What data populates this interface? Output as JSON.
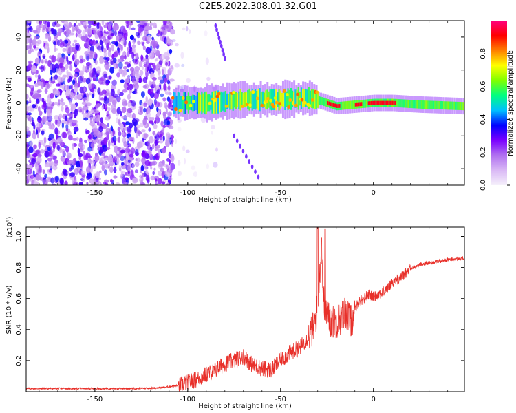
{
  "title": "C2E5.2022.308.01.32.G01",
  "chart_data": [
    {
      "type": "heatmap",
      "title": "C2E5.2022.308.01.32.G01",
      "xlabel": "Height of straight line (km)",
      "ylabel": "Frequency (Hz)",
      "xlim": [
        -187,
        49
      ],
      "ylim": [
        -50,
        50
      ],
      "x_ticks": [
        "-150",
        "-100",
        "-50",
        "0"
      ],
      "y_ticks": [
        "40",
        "20",
        "0",
        "-20",
        "-40"
      ],
      "x_tick_values": [
        -150,
        -100,
        -50,
        0
      ],
      "y_tick_values": [
        40,
        20,
        0,
        -20,
        -40
      ],
      "colorbar": {
        "label": "Normalized spectral amplitude",
        "range": [
          0,
          1
        ],
        "ticks": [
          "0.0",
          "0.2",
          "0.4",
          "0.6",
          "0.8"
        ],
        "tick_values": [
          0.0,
          0.2,
          0.4,
          0.6,
          0.8
        ],
        "colormap": [
          "#f5f0fb",
          "#d9b8f5",
          "#b070f0",
          "#7a00ff",
          "#0000ff",
          "#00c0ff",
          "#00ff80",
          "#80ff00",
          "#ffff00",
          "#ff8000",
          "#ff0000",
          "#ff0080"
        ]
      },
      "features": [
        {
          "name": "noise-region",
          "x_range": [
            -187,
            -108
          ],
          "level": 0.3
        },
        {
          "name": "signal-band",
          "points": [
            [
              -110,
              0
            ],
            [
              -90,
              0
            ],
            [
              -70,
              2
            ],
            [
              -50,
              2
            ],
            [
              -35,
              3
            ],
            [
              -28,
              1
            ],
            [
              -20,
              -2
            ],
            [
              -10,
              -1
            ],
            [
              0,
              0
            ],
            [
              10,
              0
            ],
            [
              25,
              -1
            ],
            [
              49,
              -2
            ]
          ]
        },
        {
          "name": "streak-upper",
          "points": [
            [
              -85,
              47
            ],
            [
              -80,
              27
            ]
          ]
        },
        {
          "name": "streak-lower",
          "points": [
            [
              -75,
              -20
            ],
            [
              -62,
              -45
            ]
          ]
        }
      ]
    },
    {
      "type": "line",
      "xlabel": "Height of straight line (km)",
      "ylabel": "SNR (10 * v/v)",
      "y_scale_label": "(x10",
      "y_scale_exp": "4",
      "y_scale_close": ")",
      "xlim": [
        -187,
        49
      ],
      "ylim": [
        0,
        1.06
      ],
      "x_ticks": [
        "-150",
        "-100",
        "-50",
        "0"
      ],
      "y_ticks": [
        "0.2",
        "0.4",
        "0.6",
        "0.8",
        "1.0"
      ],
      "x_tick_values": [
        -150,
        -100,
        -50,
        0
      ],
      "y_tick_values": [
        0.2,
        0.4,
        0.6,
        0.8,
        1.0
      ],
      "color": "#e8302a",
      "x": [
        -187,
        -170,
        -150,
        -130,
        -115,
        -105,
        -100,
        -95,
        -90,
        -85,
        -80,
        -75,
        -70,
        -65,
        -60,
        -55,
        -50,
        -45,
        -40,
        -35,
        -32,
        -30,
        -28,
        -27,
        -25,
        -23,
        -20,
        -17,
        -15,
        -12,
        -10,
        -8,
        -5,
        -3,
        0,
        3,
        5,
        8,
        10,
        15,
        20,
        25,
        30,
        35,
        40,
        49
      ],
      "y": [
        0.02,
        0.02,
        0.02,
        0.02,
        0.025,
        0.04,
        0.06,
        0.08,
        0.11,
        0.14,
        0.18,
        0.2,
        0.23,
        0.17,
        0.15,
        0.14,
        0.2,
        0.25,
        0.28,
        0.35,
        0.42,
        0.55,
        0.95,
        0.6,
        0.5,
        0.45,
        0.45,
        0.48,
        0.52,
        0.45,
        0.52,
        0.58,
        0.6,
        0.63,
        0.61,
        0.63,
        0.64,
        0.67,
        0.7,
        0.74,
        0.79,
        0.82,
        0.83,
        0.84,
        0.85,
        0.86
      ],
      "peaks": [
        [
          -30,
          1.06
        ],
        [
          -28,
          0.99
        ],
        [
          -26,
          1.05
        ]
      ]
    }
  ]
}
